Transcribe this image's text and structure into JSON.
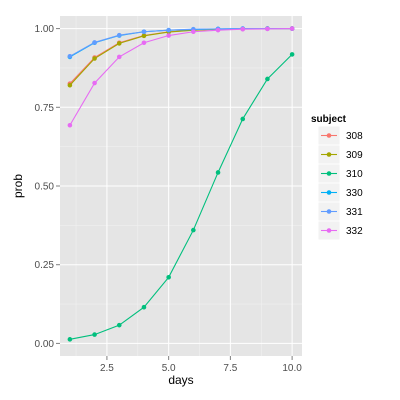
{
  "chart_data": {
    "type": "line",
    "xlabel": "days",
    "ylabel": "prob",
    "xlim": [
      0.6,
      10.4
    ],
    "ylim": [
      -0.04,
      1.04
    ],
    "x_ticks": [
      2.5,
      5.0,
      7.5,
      10.0
    ],
    "x_tick_labels": [
      "2.5",
      "5.0",
      "7.5",
      "10.0"
    ],
    "y_ticks": [
      0,
      0.25,
      0.5,
      0.75,
      1.0
    ],
    "y_tick_labels": [
      "0.00",
      "0.25",
      "0.50",
      "0.75",
      "1.00"
    ],
    "grid": true,
    "legend": {
      "title": "subject",
      "position": "right"
    },
    "x": [
      1,
      2,
      3,
      4,
      5,
      6,
      7,
      8,
      9,
      10
    ],
    "series": [
      {
        "name": "308",
        "color": "#F8766D",
        "values": [
          0.825,
          0.908,
          0.955,
          0.978,
          0.99,
          0.995,
          0.998,
          0.999,
          1.0,
          1.0
        ]
      },
      {
        "name": "309",
        "color": "#A3A500",
        "values": [
          0.82,
          0.905,
          0.953,
          0.977,
          0.989,
          0.995,
          0.998,
          0.999,
          1.0,
          1.0
        ]
      },
      {
        "name": "310",
        "color": "#00BF7D",
        "values": [
          0.013,
          0.028,
          0.058,
          0.115,
          0.21,
          0.36,
          0.543,
          0.713,
          0.84,
          0.918
        ]
      },
      {
        "name": "330",
        "color": "#00B0F6",
        "values": [
          0.91,
          0.955,
          0.978,
          0.99,
          0.995,
          0.997,
          0.999,
          1.0,
          1.0,
          1.0
        ]
      },
      {
        "name": "331",
        "color": "#619CFF",
        "values": [
          0.912,
          0.956,
          0.979,
          0.99,
          0.995,
          0.998,
          0.999,
          1.0,
          1.0,
          1.0
        ]
      },
      {
        "name": "332",
        "color": "#E76BF3",
        "values": [
          0.693,
          0.827,
          0.91,
          0.955,
          0.978,
          0.99,
          0.995,
          0.998,
          0.999,
          1.0
        ]
      }
    ]
  }
}
